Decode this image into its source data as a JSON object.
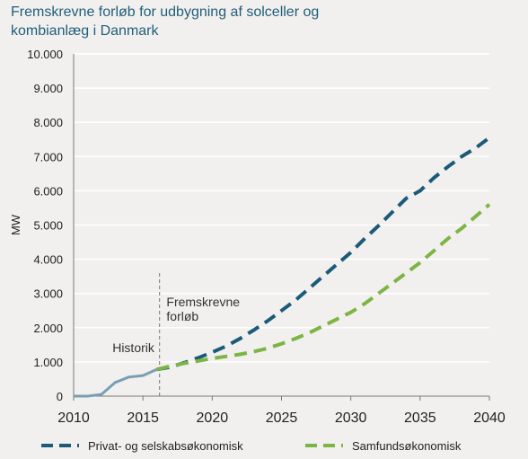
{
  "title_lines": [
    "Fremskrevne forløb for udbygning af solceller og",
    "kombianlæg i Danmark"
  ],
  "colors": {
    "private": "#1b5a78",
    "samfund": "#7db544",
    "historik": "#7a9fb5",
    "grid": "#ffffff"
  },
  "chart_data": {
    "type": "line",
    "title": "Fremskrevne forløb for udbygning af solceller og kombianlæg i Danmark",
    "ylabel": "MW",
    "xlabel": "",
    "xlim": [
      2010,
      2040
    ],
    "ylim": [
      0,
      10000
    ],
    "x_ticks": [
      2010,
      2015,
      2020,
      2025,
      2030,
      2035,
      2040
    ],
    "y_ticks": [
      0,
      1000,
      2000,
      3000,
      4000,
      5000,
      6000,
      7000,
      8000,
      9000,
      10000
    ],
    "y_tick_labels": [
      "0",
      "1.000",
      "2.000",
      "3.000",
      "4.000",
      "5.000",
      "6.000",
      "7.000",
      "8.000",
      "9.000",
      "10.000"
    ],
    "grid": "horizontal",
    "legend_position": "bottom",
    "annotations": [
      {
        "text": "Historik",
        "x": 2012.8,
        "y": 1280
      },
      {
        "text": "Fremskrevne",
        "x": 2016.7,
        "y": 2620
      },
      {
        "text": "forløb",
        "x": 2016.7,
        "y": 2200
      }
    ],
    "divider_x": 2016.2,
    "series": [
      {
        "name": "Historik",
        "style": "solid",
        "points": [
          [
            2010,
            0
          ],
          [
            2011,
            0
          ],
          [
            2012,
            50
          ],
          [
            2013,
            400
          ],
          [
            2014,
            560
          ],
          [
            2015,
            600
          ],
          [
            2016,
            780
          ]
        ]
      },
      {
        "name": "Privat- og selskabsøkonomisk",
        "style": "dashed",
        "points": [
          [
            2016,
            780
          ],
          [
            2017,
            850
          ],
          [
            2018,
            980
          ],
          [
            2019,
            1120
          ],
          [
            2020,
            1280
          ],
          [
            2021,
            1460
          ],
          [
            2022,
            1680
          ],
          [
            2023,
            1930
          ],
          [
            2024,
            2200
          ],
          [
            2025,
            2500
          ],
          [
            2026,
            2800
          ],
          [
            2027,
            3150
          ],
          [
            2028,
            3500
          ],
          [
            2029,
            3850
          ],
          [
            2030,
            4200
          ],
          [
            2031,
            4600
          ],
          [
            2032,
            4980
          ],
          [
            2033,
            5380
          ],
          [
            2034,
            5780
          ],
          [
            2035,
            6000
          ],
          [
            2036,
            6380
          ],
          [
            2037,
            6700
          ],
          [
            2038,
            7000
          ],
          [
            2039,
            7250
          ],
          [
            2040,
            7550
          ]
        ]
      },
      {
        "name": "Samfundsøkonomisk",
        "style": "dashed",
        "points": [
          [
            2016,
            780
          ],
          [
            2017,
            880
          ],
          [
            2018,
            960
          ],
          [
            2019,
            1030
          ],
          [
            2020,
            1100
          ],
          [
            2021,
            1160
          ],
          [
            2022,
            1220
          ],
          [
            2023,
            1300
          ],
          [
            2024,
            1400
          ],
          [
            2025,
            1530
          ],
          [
            2026,
            1680
          ],
          [
            2027,
            1850
          ],
          [
            2028,
            2050
          ],
          [
            2029,
            2250
          ],
          [
            2030,
            2450
          ],
          [
            2031,
            2700
          ],
          [
            2032,
            3000
          ],
          [
            2033,
            3300
          ],
          [
            2034,
            3600
          ],
          [
            2035,
            3900
          ],
          [
            2036,
            4250
          ],
          [
            2037,
            4600
          ],
          [
            2038,
            4900
          ],
          [
            2039,
            5250
          ],
          [
            2040,
            5600
          ]
        ]
      }
    ]
  },
  "legend": [
    {
      "label": "Privat- og selskabsøkonomisk",
      "color": "#1b5a78"
    },
    {
      "label": "Samfundsøkonomisk",
      "color": "#7db544"
    }
  ]
}
